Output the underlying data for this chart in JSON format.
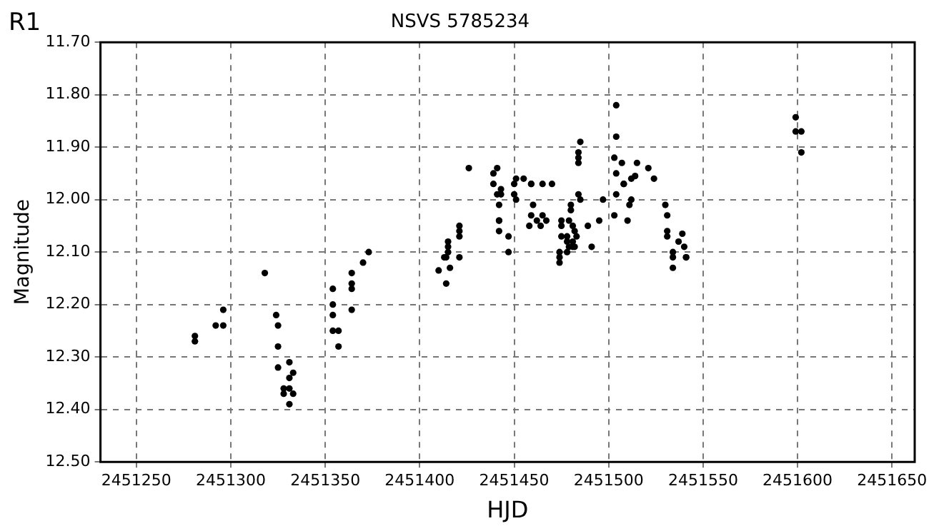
{
  "chart_data": {
    "type": "scatter",
    "title": "NSVS 5785234",
    "xlabel": "HJD",
    "ylabel": "Magnitude",
    "annotations": [
      "R1"
    ],
    "xlim": [
      2451231,
      2451662
    ],
    "xticks": [
      2451250,
      2451300,
      2451350,
      2451400,
      2451450,
      2451500,
      2451550,
      2451600,
      2451650
    ],
    "ylim": [
      12.5,
      11.7
    ],
    "yticks": [
      {
        "value": 11.7,
        "label": "11.70"
      },
      {
        "value": 11.8,
        "label": "11.80"
      },
      {
        "value": 11.9,
        "label": "11.90"
      },
      {
        "value": 12.0,
        "label": "12.00"
      },
      {
        "value": 12.1,
        "label": "12.10"
      },
      {
        "value": 12.2,
        "label": "12.20"
      },
      {
        "value": 12.3,
        "label": "12.30"
      },
      {
        "value": 12.4,
        "label": "12.40"
      },
      {
        "value": 12.5,
        "label": "12.50"
      }
    ],
    "grid": true,
    "marker": "circle",
    "series": [
      {
        "color": "#000000",
        "x": [
          2451281,
          2451281,
          2451292,
          2451296,
          2451296,
          2451318,
          2451324,
          2451325,
          2451325,
          2451325,
          2451328,
          2451328,
          2451331,
          2451331,
          2451331,
          2451331,
          2451333,
          2451333,
          2451354,
          2451354,
          2451354,
          2451354,
          2451357,
          2451357,
          2451364,
          2451364,
          2451364,
          2451364,
          2451370,
          2451373,
          2451410,
          2451413,
          2451414,
          2451414,
          2451415,
          2451415,
          2451415,
          2451416,
          2451421,
          2451421,
          2451421,
          2451421,
          2451426,
          2451439,
          2451439,
          2451441,
          2451441,
          2451442,
          2451442,
          2451442,
          2451442,
          2451443,
          2451443,
          2451447,
          2451447,
          2451450,
          2451450,
          2451451,
          2451451,
          2451455,
          2451458,
          2451459,
          2451459,
          2451459,
          2451460,
          2451462,
          2451464,
          2451465,
          2451465,
          2451467,
          2451470,
          2451474,
          2451474,
          2451474,
          2451475,
          2451475,
          2451475,
          2451478,
          2451478,
          2451478,
          2451479,
          2451479,
          2451480,
          2451480,
          2451481,
          2451481,
          2451481,
          2451482,
          2451482,
          2451483,
          2451484,
          2451484,
          2451484,
          2451484,
          2451485,
          2451485,
          2451489,
          2451491,
          2451495,
          2451497,
          2451503,
          2451503,
          2451504,
          2451504,
          2451504,
          2451504,
          2451507,
          2451508,
          2451508,
          2451510,
          2451511,
          2451512,
          2451512,
          2451514,
          2451515,
          2451521,
          2451524,
          2451530,
          2451531,
          2451531,
          2451531,
          2451534,
          2451534,
          2451534,
          2451537,
          2451539,
          2451540,
          2451541,
          2451541,
          2451599,
          2451599,
          2451602,
          2451602
        ],
        "values": [
          12.26,
          12.27,
          12.24,
          12.21,
          12.24,
          12.14,
          12.22,
          12.24,
          12.28,
          12.32,
          12.36,
          12.37,
          12.31,
          12.34,
          12.36,
          12.39,
          12.33,
          12.37,
          12.17,
          12.2,
          12.22,
          12.25,
          12.25,
          12.28,
          12.14,
          12.16,
          12.17,
          12.21,
          12.12,
          12.1,
          12.135,
          12.11,
          12.11,
          12.16,
          12.08,
          12.09,
          12.1,
          12.13,
          12.05,
          12.06,
          12.07,
          12.11,
          11.94,
          11.95,
          11.97,
          11.94,
          11.99,
          12.01,
          12.04,
          12.04,
          12.06,
          11.98,
          11.99,
          12.07,
          12.1,
          11.97,
          11.99,
          11.96,
          12.0,
          11.96,
          12.05,
          11.97,
          11.97,
          12.03,
          12.01,
          12.04,
          12.05,
          11.97,
          12.03,
          12.04,
          11.97,
          12.1,
          12.11,
          12.12,
          12.04,
          12.05,
          12.07,
          12.07,
          12.08,
          12.1,
          12.04,
          12.09,
          12.01,
          12.02,
          12.05,
          12.08,
          12.09,
          12.06,
          12.09,
          12.07,
          11.91,
          11.92,
          11.93,
          11.99,
          11.89,
          12.0,
          12.05,
          12.09,
          12.04,
          12.0,
          11.92,
          12.03,
          11.82,
          11.88,
          11.95,
          11.99,
          11.93,
          11.97,
          11.97,
          12.04,
          12.01,
          11.96,
          12.0,
          11.955,
          11.93,
          11.94,
          11.96,
          12.01,
          12.03,
          12.06,
          12.07,
          12.1,
          12.11,
          12.13,
          12.08,
          12.065,
          12.09,
          12.11,
          12.11,
          11.843,
          11.87,
          11.87,
          11.91
        ]
      }
    ]
  }
}
